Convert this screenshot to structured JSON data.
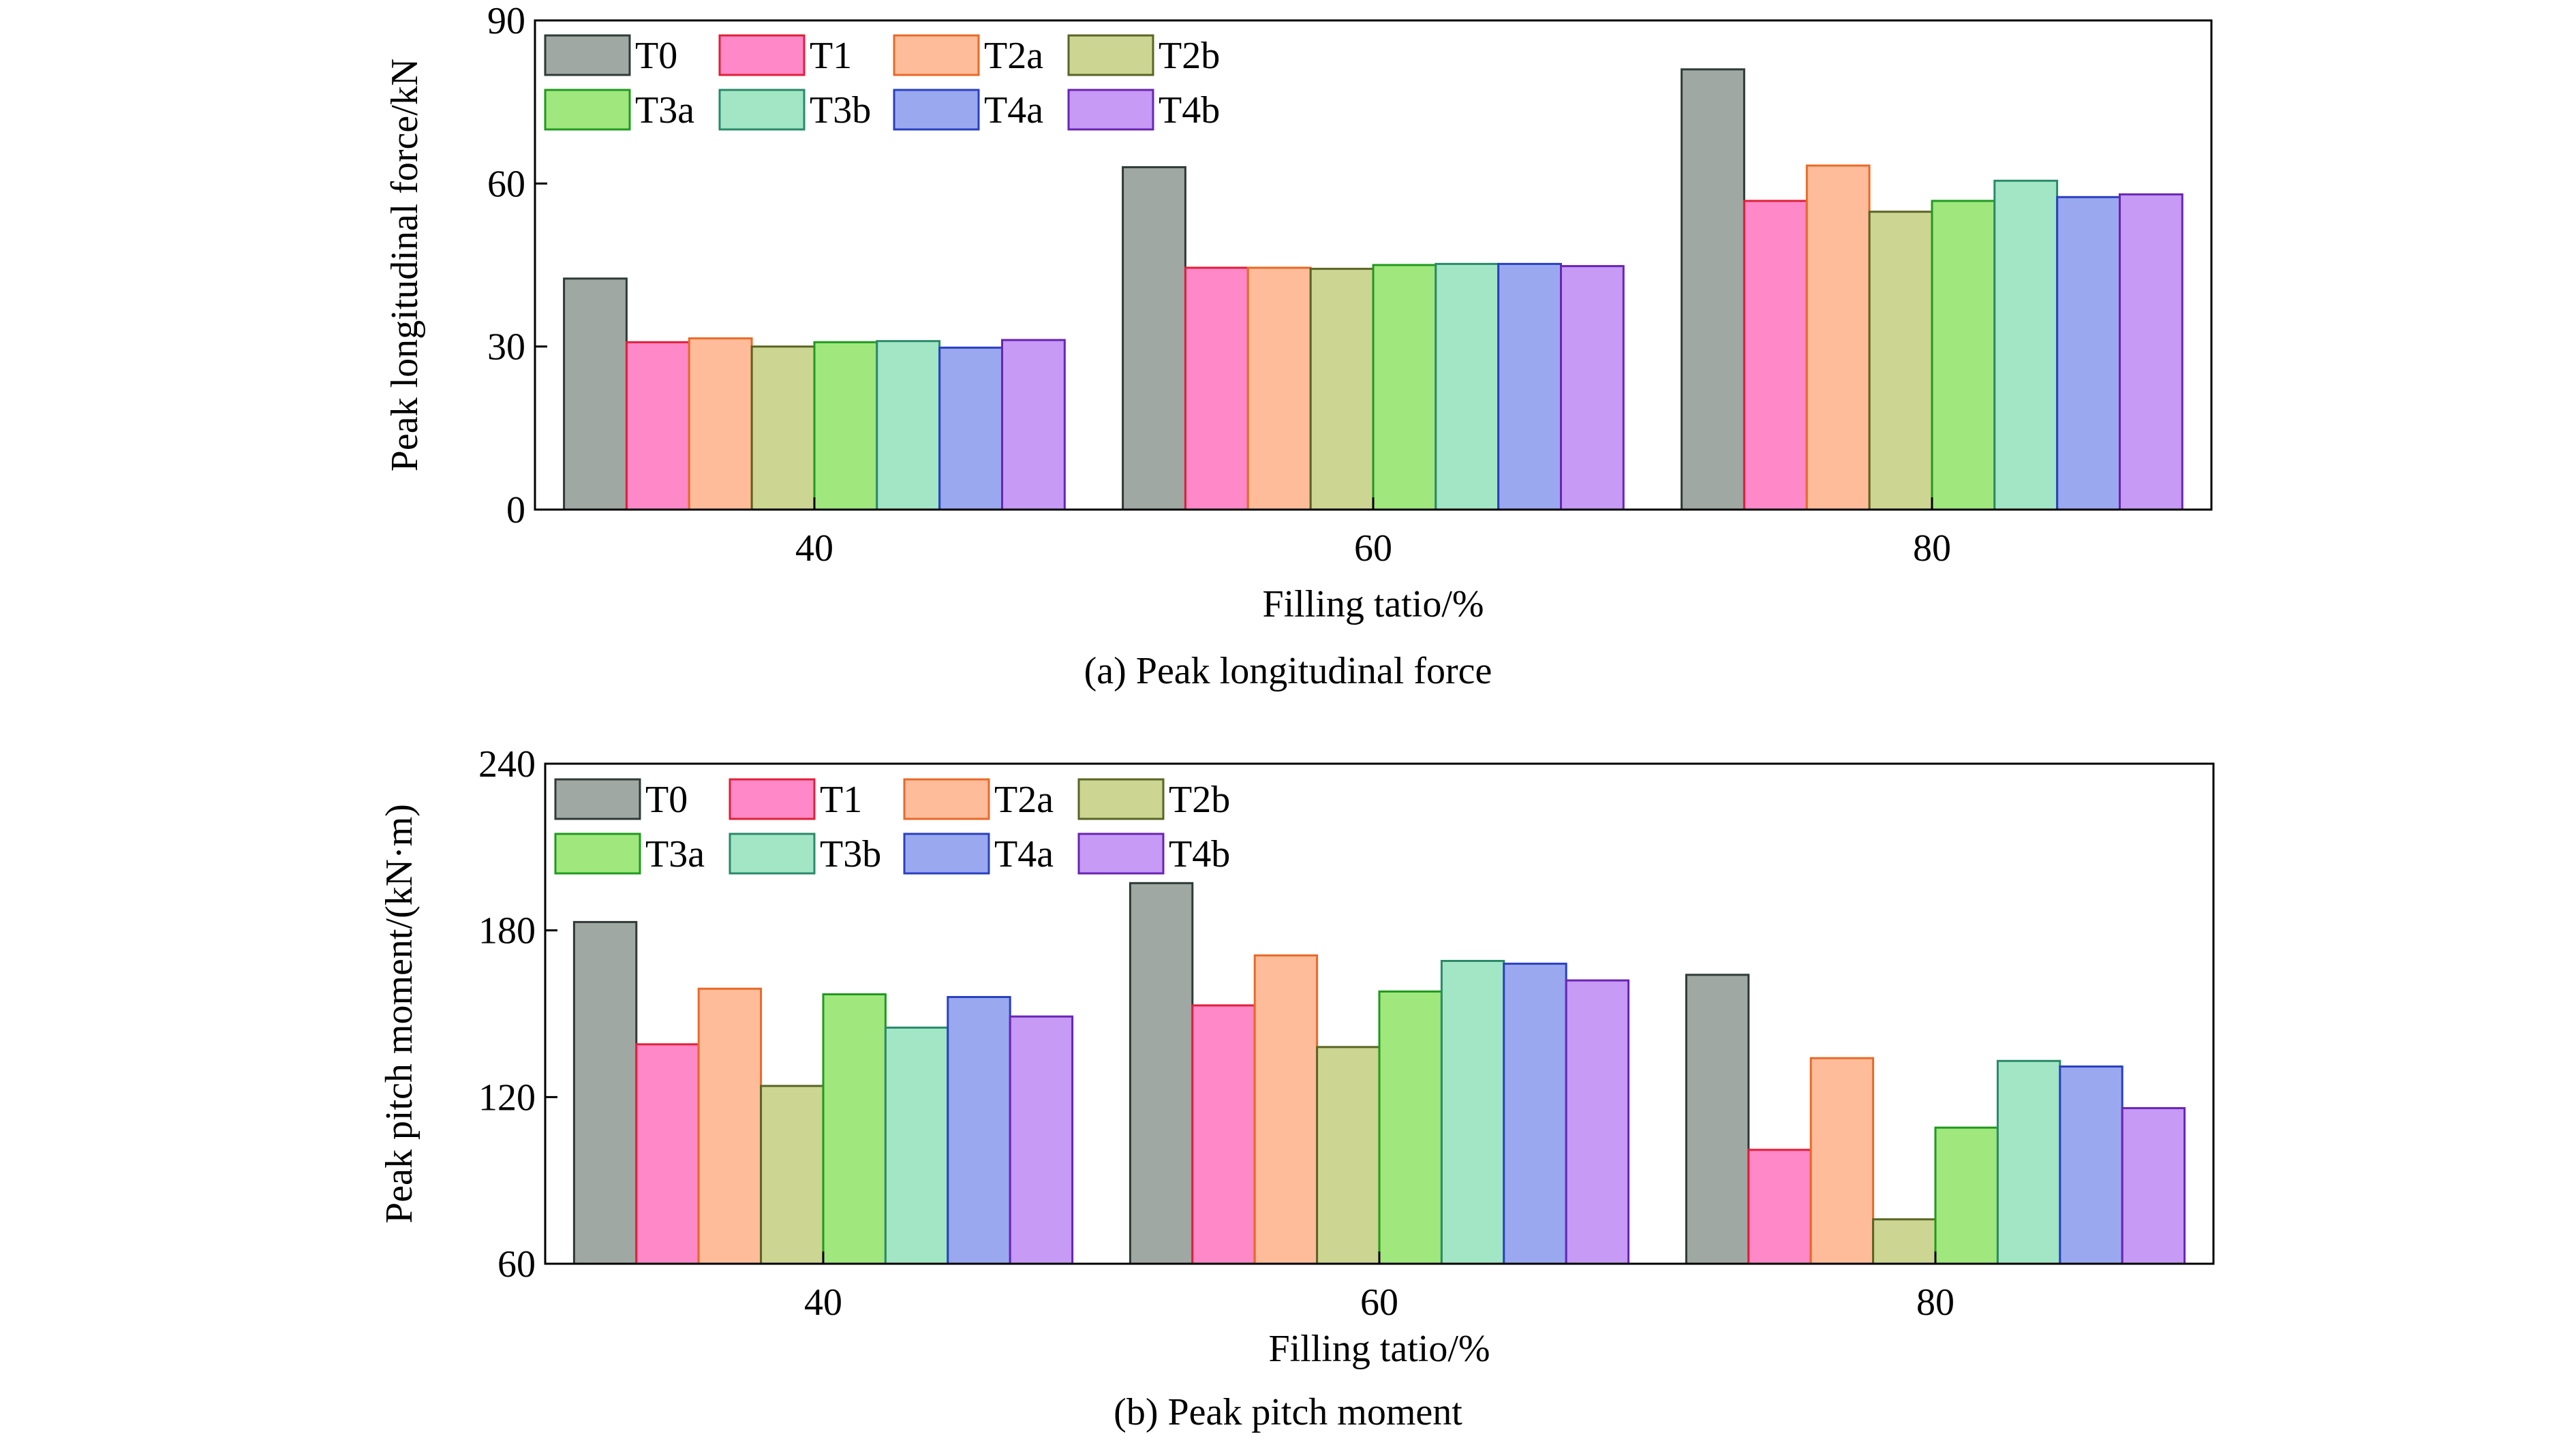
{
  "series_colors": {
    "T0": {
      "fill": "#a0a8a4",
      "stroke": "#2f3a36"
    },
    "T1": {
      "fill": "#ff88c8",
      "stroke": "#e0203a"
    },
    "T2a": {
      "fill": "#ffbc9a",
      "stroke": "#e86a28"
    },
    "T2b": {
      "fill": "#ccd592",
      "stroke": "#5a6424"
    },
    "T3a": {
      "fill": "#a0e77e",
      "stroke": "#1f9a1f"
    },
    "T3b": {
      "fill": "#a2e6c6",
      "stroke": "#2a8a6a"
    },
    "T4a": {
      "fill": "#9aa9ef",
      "stroke": "#2a40c0"
    },
    "T4b": {
      "fill": "#c69af5",
      "stroke": "#6a24b4"
    }
  },
  "chart_data": [
    {
      "type": "bar",
      "caption": "(a) Peak longitudinal force",
      "xlabel": "Filling tatio/%",
      "ylabel": "Peak longitudinal force/kN",
      "categories": [
        "40",
        "60",
        "80"
      ],
      "ylim": [
        0,
        90
      ],
      "yticks": [
        0,
        30,
        60,
        90
      ],
      "legend_position": "top-left",
      "grid": false,
      "series": [
        {
          "name": "T0",
          "values": [
            42.5,
            63.0,
            81.0
          ]
        },
        {
          "name": "T1",
          "values": [
            30.8,
            44.5,
            56.8
          ]
        },
        {
          "name": "T2a",
          "values": [
            31.5,
            44.5,
            63.3
          ]
        },
        {
          "name": "T2b",
          "values": [
            30.0,
            44.3,
            54.8
          ]
        },
        {
          "name": "T3a",
          "values": [
            30.8,
            45.0,
            56.8
          ]
        },
        {
          "name": "T3b",
          "values": [
            31.0,
            45.2,
            60.5
          ]
        },
        {
          "name": "T4a",
          "values": [
            29.8,
            45.2,
            57.5
          ]
        },
        {
          "name": "T4b",
          "values": [
            31.2,
            44.8,
            58.0
          ]
        }
      ]
    },
    {
      "type": "bar",
      "caption": "(b) Peak pitch moment",
      "xlabel": "Filling tatio/%",
      "ylabel": "Peak pitch moment/(kN·m)",
      "categories": [
        "40",
        "60",
        "80"
      ],
      "ylim": [
        60,
        240
      ],
      "yticks": [
        60,
        120,
        180,
        240
      ],
      "legend_position": "top-left",
      "grid": false,
      "series": [
        {
          "name": "T0",
          "values": [
            183,
            197,
            164
          ]
        },
        {
          "name": "T1",
          "values": [
            139,
            153,
            101
          ]
        },
        {
          "name": "T2a",
          "values": [
            159,
            171,
            134
          ]
        },
        {
          "name": "T2b",
          "values": [
            124,
            138,
            76
          ]
        },
        {
          "name": "T3a",
          "values": [
            157,
            158,
            109
          ]
        },
        {
          "name": "T3b",
          "values": [
            145,
            169,
            133
          ]
        },
        {
          "name": "T4a",
          "values": [
            156,
            168,
            131
          ]
        },
        {
          "name": "T4b",
          "values": [
            149,
            162,
            116
          ]
        }
      ]
    }
  ]
}
